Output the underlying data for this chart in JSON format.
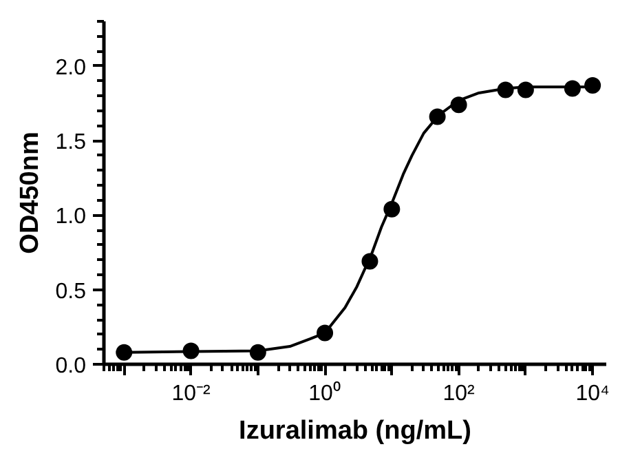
{
  "chart_data": {
    "type": "scatter",
    "xlabel": "Izuralimab (ng/mL)",
    "ylabel": "OD450nm",
    "log": "x",
    "grid": false,
    "marker": "circle",
    "xlim": [
      0.0005,
      16000
    ],
    "ylim": [
      0,
      2.3
    ],
    "xticks": [
      {
        "value": 0.001,
        "label": null
      },
      {
        "value": 0.01,
        "label": "10⁻²"
      },
      {
        "value": 0.1,
        "label": null
      },
      {
        "value": 1,
        "label": "10⁰"
      },
      {
        "value": 10,
        "label": null
      },
      {
        "value": 100,
        "label": "10²"
      },
      {
        "value": 1000,
        "label": null
      },
      {
        "value": 10000,
        "label": "10⁴"
      }
    ],
    "yticks": [
      {
        "value": 0,
        "label": "0.0"
      },
      0.5,
      {
        "value": 1,
        "label": "1.0"
      },
      1.5,
      {
        "value": 2,
        "label": "2.0"
      }
    ],
    "series": [
      {
        "color": "#000000",
        "x": [
          0.001,
          0.01,
          0.1,
          1,
          4.7,
          10,
          48,
          100,
          500,
          1000,
          5000,
          10000
        ],
        "values": [
          0.08,
          0.09,
          0.08,
          0.21,
          0.69,
          1.04,
          1.66,
          1.74,
          1.84,
          1.84,
          1.85,
          1.87
        ]
      },
      {
        "type": "line",
        "color": "#000000",
        "marker": "none",
        "x": [
          0.001,
          0.1,
          0.3,
          0.6,
          1,
          2,
          3,
          5,
          7,
          10,
          15,
          20,
          30,
          50,
          100,
          200,
          500,
          1000,
          10000
        ],
        "values": [
          0.08,
          0.09,
          0.12,
          0.17,
          0.21,
          0.38,
          0.52,
          0.74,
          0.92,
          1.08,
          1.28,
          1.4,
          1.55,
          1.67,
          1.77,
          1.82,
          1.85,
          1.86,
          1.86
        ]
      }
    ]
  }
}
